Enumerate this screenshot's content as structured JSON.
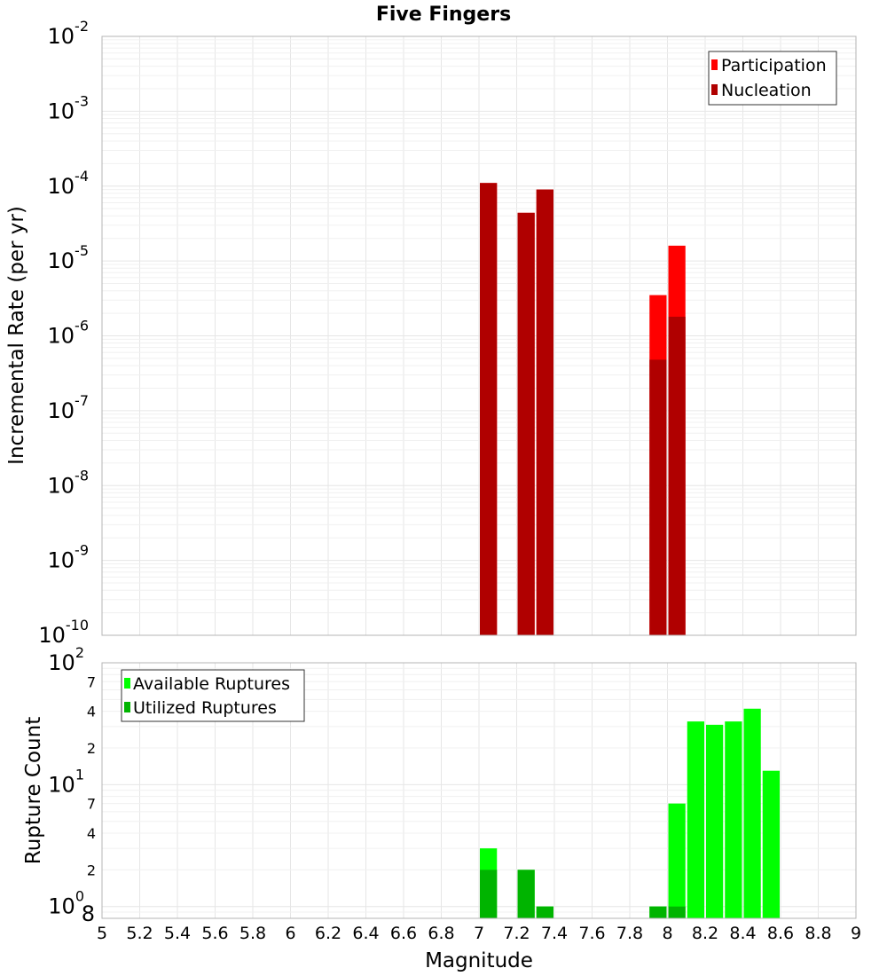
{
  "chart_data": [
    {
      "type": "bar",
      "title": "Five Fingers",
      "xlabel": "",
      "ylabel": "Incremental Rate (per yr)",
      "xlim": [
        5,
        9
      ],
      "ylim": [
        1e-10,
        0.01
      ],
      "y_scale": "log",
      "y_tick_exponents": [
        "-10",
        "-9",
        "-8",
        "-7",
        "-6",
        "-5",
        "-4",
        "-3",
        "-2"
      ],
      "grid": true,
      "legend_position": "top-right",
      "bar_width": 0.1,
      "series": [
        {
          "name": "Participation",
          "color": "#ff0000",
          "x": [
            7.05,
            7.25,
            7.35,
            7.95,
            8.05
          ],
          "values": [
            0.00011,
            4.4e-05,
            9e-05,
            3.5e-06,
            1.6e-05
          ]
        },
        {
          "name": "Nucleation",
          "color": "#b00000",
          "x": [
            7.05,
            7.25,
            7.35,
            7.95,
            8.05
          ],
          "values": [
            0.00011,
            4.4e-05,
            9e-05,
            4.8e-07,
            1.8e-06
          ]
        }
      ]
    },
    {
      "type": "bar",
      "title": "",
      "xlabel": "Magnitude",
      "ylabel": "Rupture Count",
      "xlim": [
        5,
        9
      ],
      "ylim": [
        0.8,
        100
      ],
      "y_scale": "log",
      "y_major_ticks": [
        {
          "value": 1,
          "base": "10",
          "exp": "0"
        },
        {
          "value": 10,
          "base": "10",
          "exp": "1"
        },
        {
          "value": 100,
          "base": "10",
          "exp": "2"
        }
      ],
      "y_minor_tick_labels": [
        "8",
        "2",
        "4",
        "7",
        "2",
        "4",
        "7"
      ],
      "y_minor_tick_values": [
        0.8,
        2,
        4,
        7,
        20,
        40,
        70
      ],
      "x_tick_labels": [
        "5",
        "5.2",
        "5.4",
        "5.6",
        "5.8",
        "6",
        "6.2",
        "6.4",
        "6.6",
        "6.8",
        "7",
        "7.2",
        "7.4",
        "7.6",
        "7.8",
        "8",
        "8.2",
        "8.4",
        "8.6",
        "8.8",
        "9"
      ],
      "grid": true,
      "legend_position": "top-left",
      "bar_width": 0.1,
      "series": [
        {
          "name": "Available Ruptures",
          "color": "#00ff00",
          "x": [
            7.05,
            7.25,
            7.35,
            7.95,
            8.05,
            8.15,
            8.25,
            8.35,
            8.45,
            8.55
          ],
          "values": [
            3,
            2,
            1,
            1,
            7,
            33,
            31,
            33,
            42,
            13
          ]
        },
        {
          "name": "Utilized Ruptures",
          "color": "#00b400",
          "x": [
            7.05,
            7.25,
            7.35,
            7.95,
            8.05
          ],
          "values": [
            2,
            2,
            1,
            1,
            1
          ]
        }
      ]
    }
  ]
}
